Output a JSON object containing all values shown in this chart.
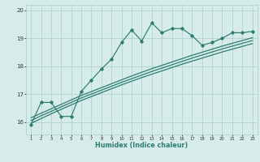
{
  "xlabel": "Humidex (Indice chaleur)",
  "x": [
    1,
    2,
    3,
    4,
    5,
    6,
    7,
    8,
    9,
    10,
    11,
    12,
    13,
    14,
    15,
    16,
    17,
    18,
    19,
    20,
    21,
    22,
    23
  ],
  "y_main": [
    15.9,
    16.7,
    16.7,
    16.2,
    16.2,
    17.1,
    17.5,
    17.9,
    18.25,
    18.85,
    19.3,
    18.9,
    19.55,
    19.2,
    19.35,
    19.35,
    19.1,
    18.75,
    18.85,
    19.0,
    19.2,
    19.2,
    19.25
  ],
  "y_line1": [
    16.15,
    16.31,
    16.47,
    16.63,
    16.79,
    16.95,
    17.09,
    17.23,
    17.37,
    17.51,
    17.65,
    17.78,
    17.91,
    18.03,
    18.15,
    18.27,
    18.39,
    18.5,
    18.61,
    18.72,
    18.82,
    18.92,
    19.02
  ],
  "y_line2": [
    16.05,
    16.22,
    16.38,
    16.54,
    16.7,
    16.86,
    17.0,
    17.14,
    17.28,
    17.42,
    17.55,
    17.68,
    17.81,
    17.93,
    18.05,
    18.17,
    18.29,
    18.4,
    18.51,
    18.62,
    18.72,
    18.82,
    18.92
  ],
  "y_line3": [
    15.95,
    16.12,
    16.29,
    16.45,
    16.61,
    16.77,
    16.91,
    17.05,
    17.19,
    17.33,
    17.46,
    17.59,
    17.71,
    17.83,
    17.95,
    18.07,
    18.18,
    18.29,
    18.4,
    18.51,
    18.61,
    18.71,
    18.81
  ],
  "line_color": "#2e7d6e",
  "bg_color": "#d6ecea",
  "grid_color": "#aacfcc",
  "ylim": [
    15.55,
    20.2
  ],
  "xlim": [
    0.5,
    23.5
  ],
  "yticks": [
    16,
    17,
    18,
    19,
    20
  ],
  "xticks": [
    1,
    2,
    3,
    4,
    5,
    6,
    7,
    8,
    9,
    10,
    11,
    12,
    13,
    14,
    15,
    16,
    17,
    18,
    19,
    20,
    21,
    22,
    23
  ]
}
